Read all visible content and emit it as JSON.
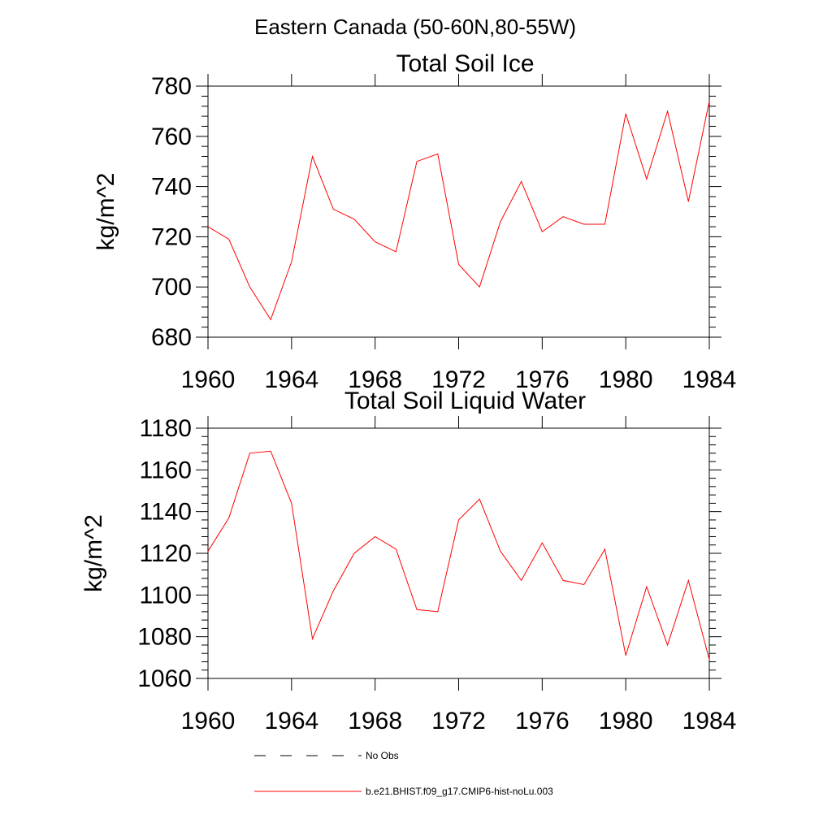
{
  "figure": {
    "title": "Eastern Canada (50-60N,80-55W)"
  },
  "series_color": "#ff0000",
  "legend": {
    "items": [
      {
        "label": "No Obs",
        "style": "dashed",
        "color": "#000000"
      },
      {
        "label": "b.e21.BHIST.f09_g17.CMIP6-hist-noLu.003",
        "style": "solid",
        "color": "#ff0000"
      }
    ]
  },
  "chart_data": [
    {
      "type": "line",
      "title": "Total Soil Ice",
      "xlabel": "",
      "ylabel": "kg/m^2",
      "xlim": [
        1960,
        1984
      ],
      "ylim": [
        680,
        780
      ],
      "xticks": [
        1960,
        1964,
        1968,
        1972,
        1976,
        1980,
        1984
      ],
      "yticks": [
        680,
        700,
        720,
        740,
        760,
        780
      ],
      "x": [
        1960,
        1961,
        1962,
        1963,
        1964,
        1965,
        1966,
        1967,
        1968,
        1969,
        1970,
        1971,
        1972,
        1973,
        1974,
        1975,
        1976,
        1977,
        1978,
        1979,
        1980,
        1981,
        1982,
        1983,
        1984
      ],
      "series": [
        {
          "name": "b.e21.BHIST.f09_g17.CMIP6-hist-noLu.003",
          "values": [
            724,
            719,
            700,
            687,
            710,
            752,
            731,
            727,
            718,
            714,
            750,
            753,
            709,
            700,
            726,
            742,
            722,
            728,
            725,
            725,
            769,
            743,
            770,
            734,
            774
          ]
        }
      ]
    },
    {
      "type": "line",
      "title": "Total Soil Liquid Water",
      "xlabel": "",
      "ylabel": "kg/m^2",
      "xlim": [
        1960,
        1984
      ],
      "ylim": [
        1060,
        1180
      ],
      "xticks": [
        1960,
        1964,
        1968,
        1972,
        1976,
        1980,
        1984
      ],
      "yticks": [
        1060,
        1080,
        1100,
        1120,
        1140,
        1160,
        1180
      ],
      "x": [
        1960,
        1961,
        1962,
        1963,
        1964,
        1965,
        1966,
        1967,
        1968,
        1969,
        1970,
        1971,
        1972,
        1973,
        1974,
        1975,
        1976,
        1977,
        1978,
        1979,
        1980,
        1981,
        1982,
        1983,
        1984
      ],
      "series": [
        {
          "name": "b.e21.BHIST.f09_g17.CMIP6-hist-noLu.003",
          "values": [
            1121,
            1137,
            1168,
            1169,
            1144,
            1079,
            1102,
            1120,
            1128,
            1122,
            1093,
            1092,
            1136,
            1146,
            1121,
            1107,
            1125,
            1107,
            1105,
            1122,
            1071,
            1104,
            1076,
            1107,
            1069
          ]
        }
      ]
    }
  ]
}
